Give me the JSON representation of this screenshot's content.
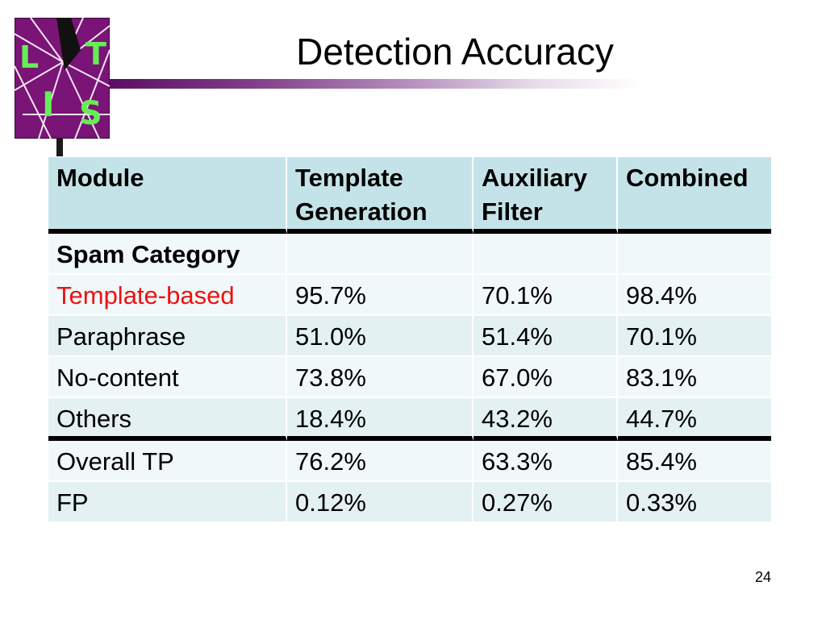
{
  "title": "Detection Accuracy",
  "page_number": "24",
  "logo": {
    "letters": [
      "L",
      "T",
      "I",
      "S"
    ],
    "background_color": "#7a1476",
    "letter_color": "#66ee55"
  },
  "table": {
    "headers": [
      "Module",
      "Template Generation",
      "Auxiliary Filter",
      "Combined"
    ],
    "category_row": [
      "Spam Category",
      "",
      "",
      ""
    ],
    "category_rows": [
      [
        "Template-based",
        "95.7%",
        "70.1%",
        "98.4%"
      ],
      [
        "Paraphrase",
        "51.0%",
        "51.4%",
        "70.1%"
      ],
      [
        "No-content",
        "73.8%",
        "67.0%",
        "83.1%"
      ],
      [
        "Others",
        "18.4%",
        "43.2%",
        "44.7%"
      ]
    ],
    "summary_rows": [
      [
        "Overall TP",
        "76.2%",
        "63.3%",
        "85.4%"
      ],
      [
        "FP",
        "0.12%",
        "0.27%",
        "0.33%"
      ]
    ],
    "highlight_color": "#ee1111",
    "header_bg": "#c4e3e8"
  }
}
